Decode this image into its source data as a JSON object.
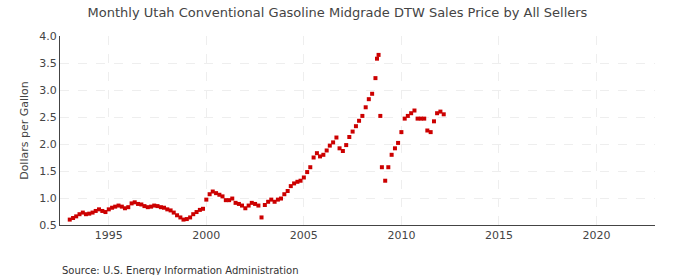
{
  "chart_data": {
    "type": "scatter",
    "title": "Monthly Utah Conventional Gasoline Midgrade DTW Sales Price by All Sellers",
    "ylabel": "Dollars per Gallon",
    "annotations": [
      "Source: U.S. Energy Information Administration"
    ],
    "color": "#cc0000",
    "marker": "square",
    "grid": true,
    "xlim": [
      1992.5,
      2023.0
    ],
    "ylim": [
      0.5,
      4.0
    ],
    "xticks": [
      1995,
      2000,
      2005,
      2010,
      2015,
      2020
    ],
    "yticks": [
      0.5,
      {
        "value": 1.0,
        "label": "1.0"
      },
      1.5,
      {
        "value": 2.0,
        "label": "2.0"
      },
      2.5,
      {
        "value": 3.0,
        "label": "3.0"
      },
      3.5,
      {
        "value": 4.0,
        "label": "4.0"
      }
    ],
    "x": [
      1993.0,
      1993.17,
      1993.33,
      1993.5,
      1993.67,
      1993.83,
      1994.0,
      1994.17,
      1994.33,
      1994.5,
      1994.67,
      1994.83,
      1995.0,
      1995.17,
      1995.33,
      1995.5,
      1995.67,
      1995.83,
      1996.0,
      1996.17,
      1996.33,
      1996.5,
      1996.67,
      1996.83,
      1997.0,
      1997.17,
      1997.33,
      1997.5,
      1997.67,
      1997.83,
      1998.0,
      1998.17,
      1998.33,
      1998.5,
      1998.67,
      1998.83,
      1999.0,
      1999.17,
      1999.33,
      1999.5,
      1999.67,
      1999.83,
      2000.0,
      2000.17,
      2000.33,
      2000.5,
      2000.67,
      2000.83,
      2001.0,
      2001.17,
      2001.33,
      2001.5,
      2001.67,
      2001.83,
      2002.0,
      2002.17,
      2002.33,
      2002.5,
      2002.67,
      2002.83,
      2003.0,
      2003.17,
      2003.33,
      2003.5,
      2003.67,
      2003.83,
      2004.0,
      2004.17,
      2004.33,
      2004.5,
      2004.67,
      2004.83,
      2005.0,
      2005.17,
      2005.33,
      2005.5,
      2005.67,
      2005.83,
      2006.0,
      2006.17,
      2006.33,
      2006.5,
      2006.67,
      2006.83,
      2007.0,
      2007.17,
      2007.33,
      2007.5,
      2007.67,
      2007.83,
      2008.0,
      2008.17,
      2008.33,
      2008.5,
      2008.67,
      2008.75,
      2008.83,
      2008.92,
      2009.0,
      2009.17,
      2009.33,
      2009.5,
      2009.67,
      2009.83,
      2010.0,
      2010.17,
      2010.33,
      2010.5,
      2010.67,
      2010.83,
      2011.0,
      2011.17,
      2011.33,
      2011.5,
      2011.67,
      2011.83,
      2012.0,
      2012.17
    ],
    "values": [
      0.6,
      0.63,
      0.66,
      0.7,
      0.73,
      0.7,
      0.71,
      0.73,
      0.76,
      0.79,
      0.76,
      0.74,
      0.79,
      0.82,
      0.84,
      0.86,
      0.84,
      0.81,
      0.83,
      0.9,
      0.92,
      0.89,
      0.88,
      0.85,
      0.83,
      0.84,
      0.86,
      0.85,
      0.83,
      0.82,
      0.79,
      0.77,
      0.73,
      0.68,
      0.64,
      0.6,
      0.61,
      0.64,
      0.7,
      0.74,
      0.78,
      0.8,
      0.97,
      1.07,
      1.12,
      1.09,
      1.06,
      1.03,
      0.96,
      0.96,
      0.99,
      0.91,
      0.89,
      0.86,
      0.81,
      0.86,
      0.91,
      0.89,
      0.86,
      0.64,
      0.87,
      0.93,
      0.97,
      0.93,
      0.97,
      0.99,
      1.07,
      1.13,
      1.22,
      1.27,
      1.3,
      1.32,
      1.38,
      1.48,
      1.57,
      1.75,
      1.83,
      1.77,
      1.8,
      1.88,
      1.97,
      2.03,
      2.12,
      1.92,
      1.87,
      1.98,
      2.13,
      2.23,
      2.33,
      2.43,
      2.52,
      2.68,
      2.83,
      2.93,
      3.22,
      3.58,
      3.65,
      2.52,
      1.57,
      1.32,
      1.57,
      1.8,
      1.92,
      2.02,
      2.22,
      2.47,
      2.52,
      2.57,
      2.62,
      2.47,
      2.47,
      2.47,
      2.25,
      2.22,
      2.42,
      2.57,
      2.6,
      2.55
    ]
  }
}
